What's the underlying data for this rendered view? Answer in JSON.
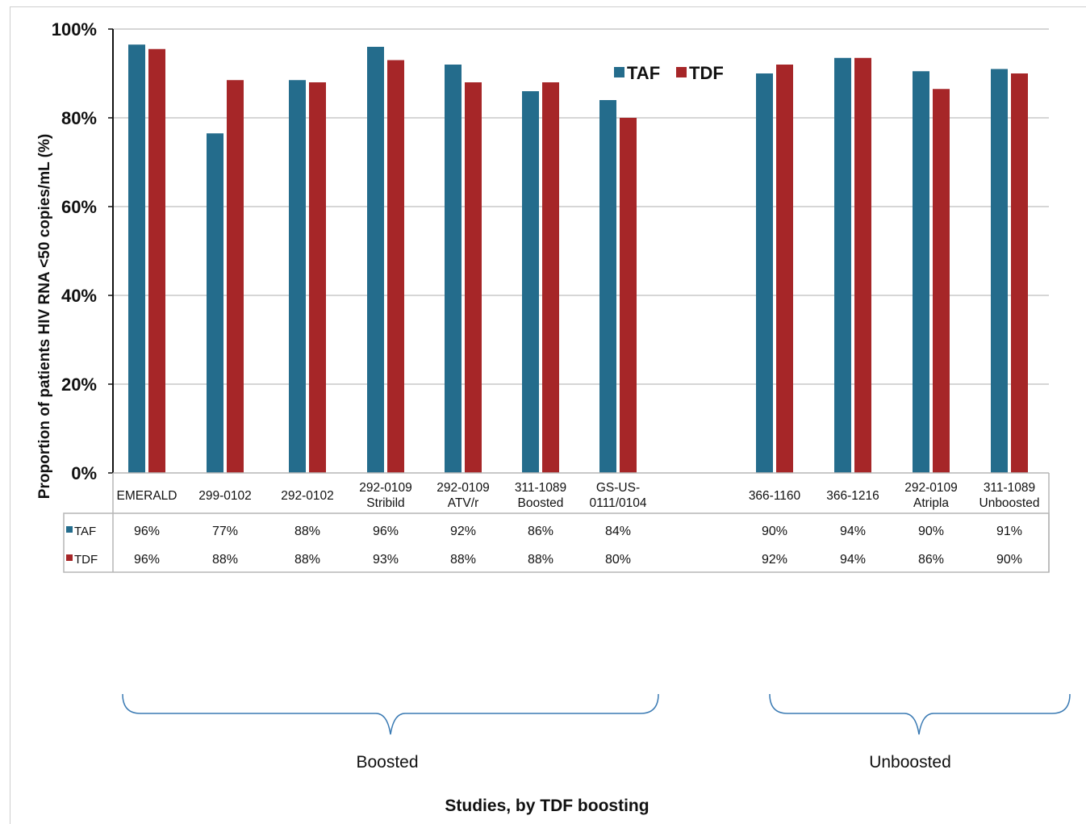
{
  "chart_data": {
    "type": "bar",
    "title": "",
    "ylabel": "Proportion of patients HIV RNA <50 copies/mL (%)",
    "xlabel": "Studies, by TDF boosting",
    "ylim": [
      0,
      100
    ],
    "yticks": [
      "0%",
      "20%",
      "40%",
      "60%",
      "80%",
      "100%"
    ],
    "grid": true,
    "legend_position": "top-right",
    "categories": [
      [
        "EMERALD"
      ],
      [
        "299-0102"
      ],
      [
        "292-0102"
      ],
      [
        "292-0109",
        "Stribild"
      ],
      [
        "292-0109",
        "ATV/r"
      ],
      [
        "311-1089",
        "Boosted"
      ],
      [
        "GS-US-",
        "0111/0104"
      ],
      [
        "366-1160"
      ],
      [
        "366-1216"
      ],
      [
        "292-0109",
        "Atripla"
      ],
      [
        "311-1089",
        "Unboosted"
      ]
    ],
    "series": [
      {
        "name": "TAF",
        "color": "#246c8c",
        "values": [
          96.5,
          76.5,
          88.5,
          96,
          92,
          86,
          84,
          90,
          93.5,
          90.5,
          91
        ],
        "labels": [
          "96%",
          "77%",
          "88%",
          "96%",
          "92%",
          "86%",
          "84%",
          "90%",
          "94%",
          "90%",
          "91%"
        ]
      },
      {
        "name": "TDF",
        "color": "#a62628",
        "values": [
          95.5,
          88.5,
          88,
          93,
          88,
          88,
          80,
          92,
          93.5,
          86.5,
          90
        ],
        "labels": [
          "96%",
          "88%",
          "88%",
          "93%",
          "88%",
          "88%",
          "80%",
          "92%",
          "94%",
          "86%",
          "90%"
        ]
      }
    ],
    "groups": [
      {
        "name": "Boosted",
        "from": 0,
        "to": 6
      },
      {
        "name": "Unboosted",
        "from": 7,
        "to": 10
      }
    ]
  }
}
